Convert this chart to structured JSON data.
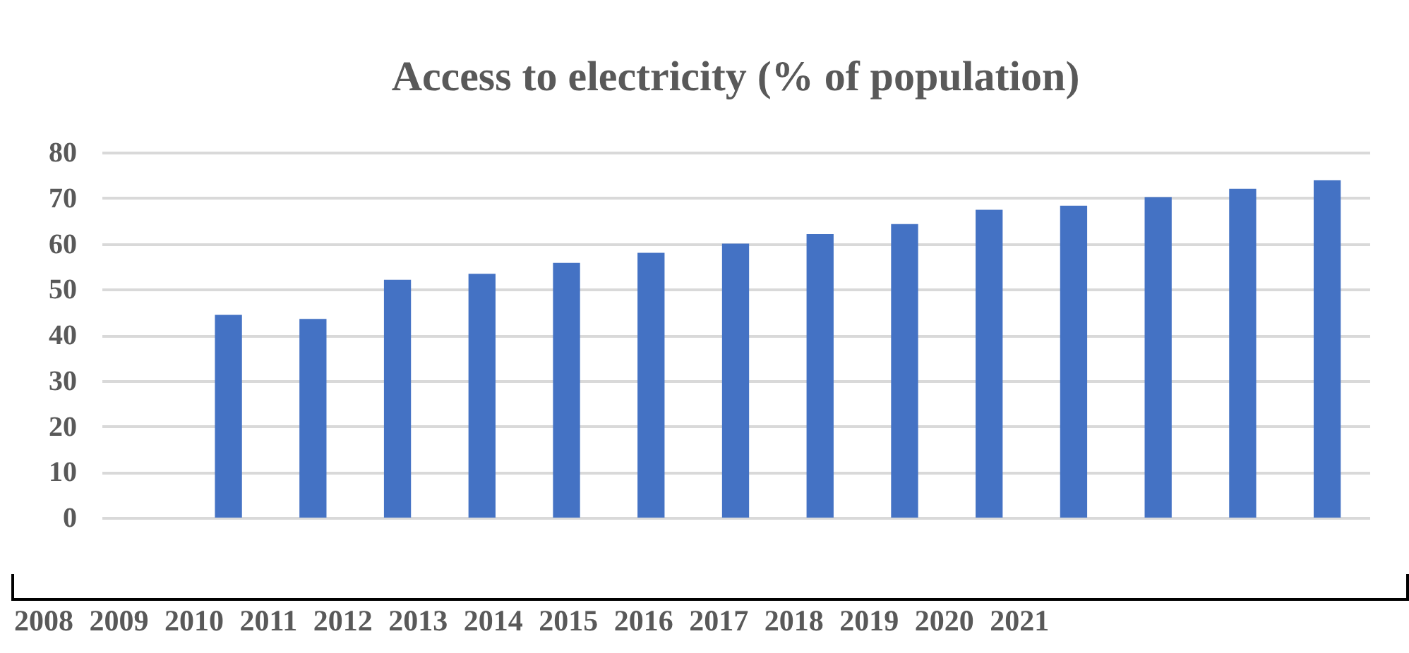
{
  "chart_data": {
    "type": "bar",
    "title": "Access to electricity (% of population)",
    "categories": [
      null,
      null,
      null,
      null,
      null,
      null,
      null,
      null,
      null,
      null,
      null,
      null,
      null,
      null,
      null
    ],
    "values": [
      null,
      44.4,
      43.5,
      52.1,
      53.4,
      55.8,
      58.0,
      60.0,
      62.1,
      64.3,
      67.4,
      68.3,
      70.2,
      72.0,
      73.9
    ],
    "color": "#4472c4",
    "ylim": [
      0,
      80
    ],
    "yticks": [
      0,
      10,
      20,
      30,
      40,
      50,
      60,
      70,
      80
    ],
    "grid": "y",
    "tick_labels": "y",
    "annotations": [
      "2008 2009 2010 2011 2012 2013 2014 2015 2016 2017 2018 2019 2020 2021"
    ]
  }
}
